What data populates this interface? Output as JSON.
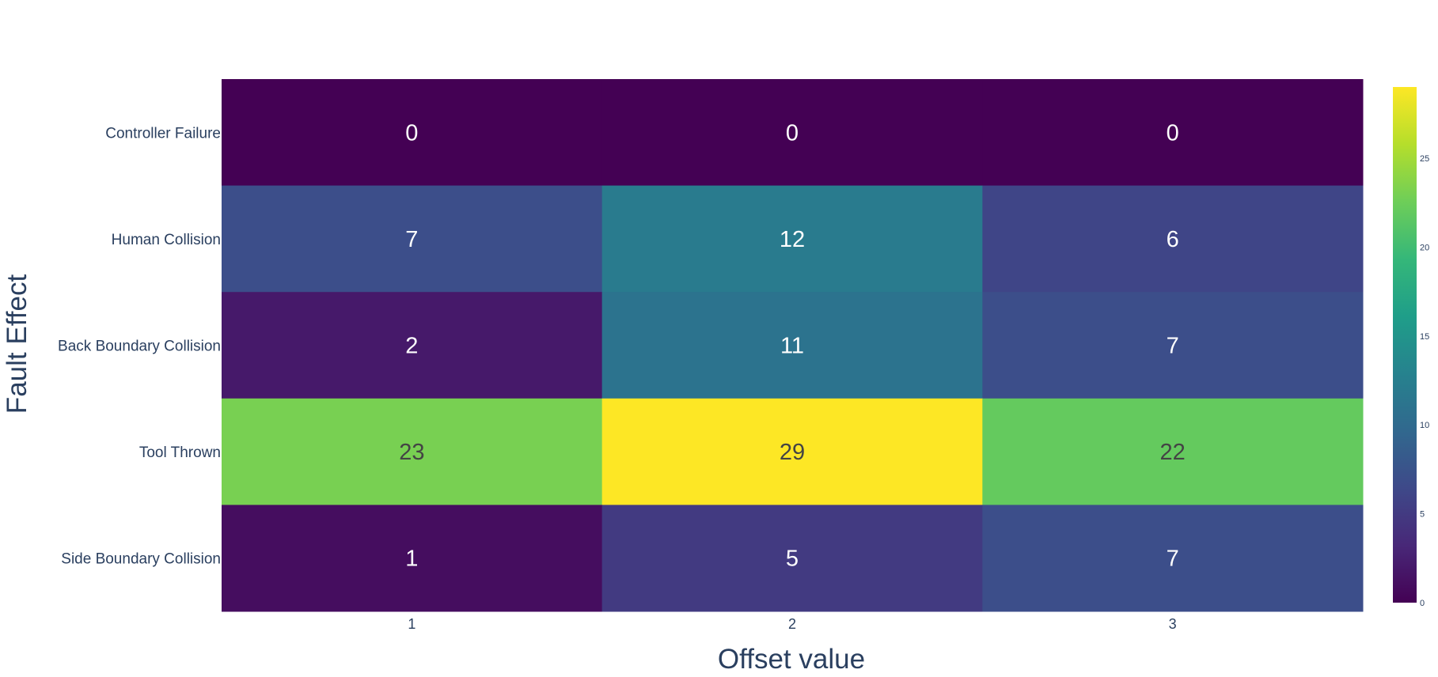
{
  "chart_data": {
    "type": "heatmap",
    "title": "",
    "xlabel": "Offset value",
    "ylabel": "Fault Effect",
    "x": [
      "1",
      "2",
      "3"
    ],
    "y": [
      "Controller Failure",
      "Human Collision",
      "Back Boundary Collision",
      "Tool Thrown",
      "Side Boundary Collision"
    ],
    "z": [
      [
        0,
        0,
        0
      ],
      [
        7,
        12,
        6
      ],
      [
        2,
        11,
        7
      ],
      [
        23,
        29,
        22
      ],
      [
        1,
        5,
        7
      ]
    ],
    "colorscale": "viridis",
    "zmin": 0,
    "zmax": 29,
    "colorbar_ticks": [
      "0",
      "5",
      "10",
      "15",
      "20",
      "25"
    ],
    "cell_text_colors": {
      "dark_bg": "#ffffff",
      "light_bg": "#444444"
    }
  }
}
